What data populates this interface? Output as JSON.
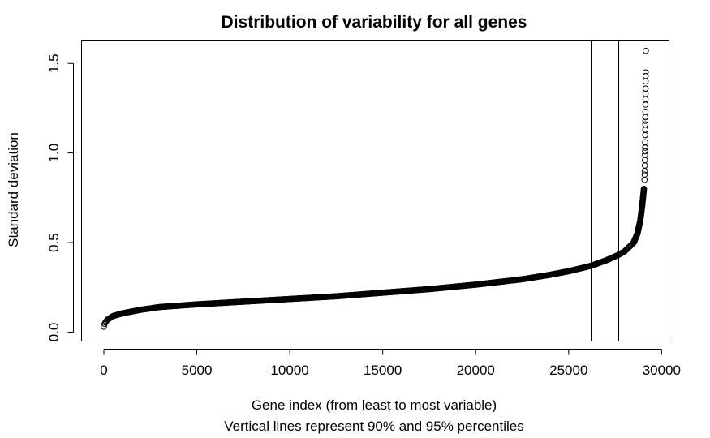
{
  "chart_data": {
    "type": "scatter",
    "title": "Distribution of variability for all genes",
    "xlabel": "Gene index (from least to most variable)",
    "subtitle": "Vertical lines represent 90% and 95% percentiles",
    "ylabel": "Standard deviation",
    "xlim": [
      -1200,
      30400
    ],
    "ylim": [
      -0.05,
      1.63
    ],
    "x_ticks": [
      0,
      5000,
      10000,
      15000,
      20000,
      25000,
      30000
    ],
    "x_tick_labels": [
      "0",
      "5000",
      "10000",
      "15000",
      "20000",
      "25000",
      "30000"
    ],
    "y_ticks": [
      0.0,
      0.5,
      1.0,
      1.5
    ],
    "y_tick_labels": [
      "0.0",
      "0.5",
      "1.0",
      "1.5"
    ],
    "vertical_lines": [
      26200,
      27660
    ],
    "total_points": 29150,
    "curve_points": [
      [
        0,
        0.03
      ],
      [
        50,
        0.05
      ],
      [
        200,
        0.07
      ],
      [
        500,
        0.09
      ],
      [
        1000,
        0.105
      ],
      [
        2000,
        0.125
      ],
      [
        3000,
        0.14
      ],
      [
        5000,
        0.155
      ],
      [
        7500,
        0.17
      ],
      [
        10000,
        0.185
      ],
      [
        12500,
        0.2
      ],
      [
        15000,
        0.22
      ],
      [
        17500,
        0.24
      ],
      [
        20000,
        0.265
      ],
      [
        22500,
        0.295
      ],
      [
        24000,
        0.32
      ],
      [
        25000,
        0.34
      ],
      [
        26200,
        0.37
      ],
      [
        27000,
        0.4
      ],
      [
        27660,
        0.43
      ],
      [
        28000,
        0.45
      ],
      [
        28300,
        0.48
      ],
      [
        28500,
        0.5
      ],
      [
        28700,
        0.55
      ],
      [
        28850,
        0.62
      ],
      [
        28950,
        0.7
      ],
      [
        29000,
        0.75
      ],
      [
        29050,
        0.8
      ]
    ],
    "tail_points": [
      [
        29080,
        0.85
      ],
      [
        29090,
        0.88
      ],
      [
        29095,
        0.9
      ],
      [
        29100,
        0.93
      ],
      [
        29105,
        0.96
      ],
      [
        29110,
        0.99
      ],
      [
        29112,
        1.01
      ],
      [
        29115,
        1.03
      ],
      [
        29118,
        1.06
      ],
      [
        29120,
        1.1
      ],
      [
        29122,
        1.13
      ],
      [
        29124,
        1.16
      ],
      [
        29126,
        1.18
      ],
      [
        29128,
        1.2
      ],
      [
        29130,
        1.23
      ],
      [
        29132,
        1.27
      ],
      [
        29134,
        1.3
      ],
      [
        29136,
        1.33
      ],
      [
        29138,
        1.36
      ],
      [
        29140,
        1.4
      ],
      [
        29142,
        1.43
      ],
      [
        29144,
        1.45
      ],
      [
        29150,
        1.57
      ]
    ]
  }
}
